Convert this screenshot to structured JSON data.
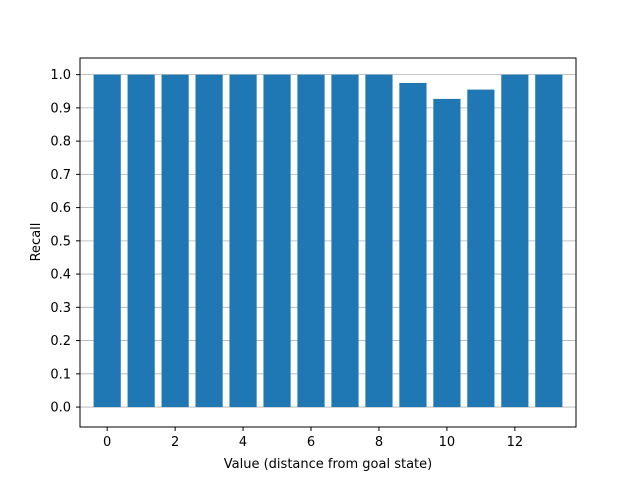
{
  "chart_data": {
    "type": "bar",
    "title": "",
    "xlabel": "Value (distance from goal state)",
    "ylabel": "Recall",
    "x": [
      0,
      1,
      2,
      3,
      4,
      5,
      6,
      7,
      8,
      9,
      10,
      11,
      12,
      13
    ],
    "values": [
      1.0,
      1.0,
      1.0,
      1.0,
      1.0,
      1.0,
      1.0,
      1.0,
      1.0,
      0.975,
      0.927,
      0.955,
      1.0,
      1.0
    ],
    "xlim": [
      -0.8,
      13.8
    ],
    "ylim": [
      -0.06,
      1.05
    ],
    "xticks": [
      0,
      2,
      4,
      6,
      8,
      10,
      12
    ],
    "yticks": [
      0.0,
      0.1,
      0.2,
      0.3,
      0.4,
      0.5,
      0.6,
      0.7,
      0.8,
      0.9,
      1.0
    ],
    "ytick_labels": [
      "0.0",
      "0.1",
      "0.2",
      "0.3",
      "0.4",
      "0.5",
      "0.6",
      "0.7",
      "0.8",
      "0.9",
      "1.0"
    ],
    "grid": "horizontal",
    "bar_color": "#1f77b4",
    "grid_color": "#b0b0b0"
  }
}
